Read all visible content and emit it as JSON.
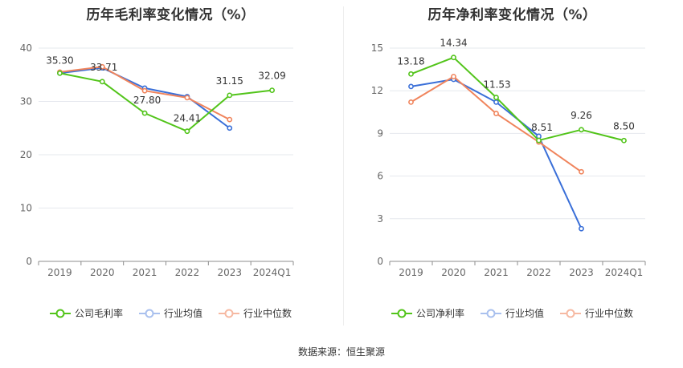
{
  "charts": [
    {
      "title": "历年毛利率变化情况（%）",
      "legend": [
        "公司毛利率",
        "行业均值",
        "行业中位数"
      ]
    },
    {
      "title": "历年净利率变化情况（%）",
      "legend": [
        "公司净利率",
        "行业均值",
        "行业中位数"
      ]
    }
  ],
  "source": "数据来源：恒生聚源",
  "colors": {
    "company": "#52c41a",
    "industry_mean": "#3a6fd8",
    "industry_median": "#f0845c",
    "grid": "#e6e8ee",
    "axis_text": "#666666",
    "label_text": "#333333"
  },
  "chart_data": [
    {
      "type": "line",
      "title": "历年毛利率变化情况（%）",
      "categories": [
        "2019",
        "2020",
        "2021",
        "2022",
        "2023",
        "2024Q1"
      ],
      "ylim": [
        0,
        40
      ],
      "yticks": [
        0,
        10,
        20,
        30,
        40
      ],
      "grid": true,
      "legend_position": "bottom",
      "series": [
        {
          "name": "公司毛利率",
          "values": [
            35.3,
            33.71,
            27.8,
            24.41,
            31.15,
            32.09
          ],
          "labels": [
            "35.30",
            "33.71",
            "27.80",
            "24.41",
            "31.15",
            "32.09"
          ]
        },
        {
          "name": "行业均值",
          "values": [
            35.3,
            36.3,
            32.5,
            30.9,
            25.0,
            null
          ]
        },
        {
          "name": "行业中位数",
          "values": [
            35.5,
            36.5,
            32.0,
            30.7,
            26.6,
            null
          ]
        }
      ]
    },
    {
      "type": "line",
      "title": "历年净利率变化情况（%）",
      "categories": [
        "2019",
        "2020",
        "2021",
        "2022",
        "2023",
        "2024Q1"
      ],
      "ylim": [
        0,
        15
      ],
      "yticks": [
        0,
        3,
        6,
        9,
        12,
        15
      ],
      "grid": true,
      "legend_position": "bottom",
      "series": [
        {
          "name": "公司净利率",
          "values": [
            13.18,
            14.34,
            11.53,
            8.51,
            9.26,
            8.5
          ],
          "labels": [
            "13.18",
            "14.34",
            "11.53",
            "8.51",
            "9.26",
            "8.50"
          ]
        },
        {
          "name": "行业均值",
          "values": [
            12.3,
            12.8,
            11.2,
            8.8,
            2.3,
            null
          ]
        },
        {
          "name": "行业中位数",
          "values": [
            11.2,
            13.0,
            10.4,
            8.4,
            6.3,
            null
          ]
        }
      ]
    }
  ]
}
